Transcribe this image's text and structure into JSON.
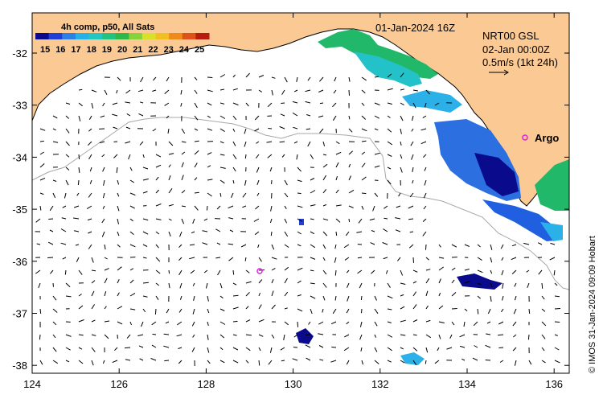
{
  "map": {
    "composite_label": "4h comp, p50, All Sats",
    "datetime_label": "01-Jan-2024 16Z",
    "model_label": "NRT00 GSL",
    "valid_time_label": "02-Jan 00:00Z",
    "vector_scale_label": "0.5m/s (1kt 24h)",
    "argo_label": "Argo",
    "credit": "© IMOS 31-Jan-2024 09:09 Hobart",
    "lat_ticks": [
      "-32",
      "-33",
      "-34",
      "-35",
      "-36",
      "-37",
      "-38"
    ],
    "lon_ticks": [
      "124",
      "126",
      "128",
      "130",
      "132",
      "134",
      "136"
    ],
    "colorbar_ticks": [
      "15",
      "16",
      "17",
      "18",
      "19",
      "20",
      "21",
      "22",
      "23",
      "24",
      "25"
    ],
    "colorbar_colors": [
      "#0a0a8c",
      "#1f3fd8",
      "#2b7fe6",
      "#26b0e8",
      "#22c7c2",
      "#22c280",
      "#2eb84a",
      "#86d23a",
      "#d8e02a",
      "#f0c020",
      "#f08a18",
      "#e0501a",
      "#b81a10"
    ],
    "colors": {
      "land": "#fbc993",
      "ocean": "#ffffff",
      "isobath": "#a8a8a8",
      "argo_marker": "#e020e0"
    }
  }
}
